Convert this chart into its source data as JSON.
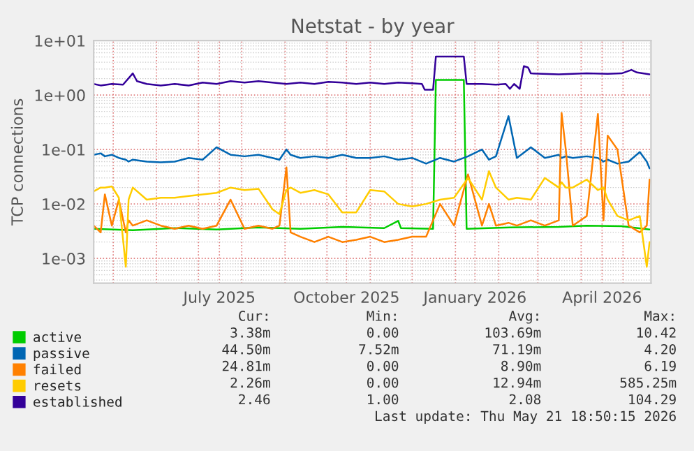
{
  "chart_data": {
    "type": "line",
    "title": "Netstat - by year",
    "ylabel": "TCP connections",
    "log": "y",
    "grid": true,
    "legend": "bottom",
    "line_style": "solid",
    "marker": "none",
    "xlim": [
      "2025-04-17",
      "2026-05-21"
    ],
    "xticks": [
      {
        "value": "2025-05-01",
        "label": null
      },
      {
        "value": "2025-06-01",
        "label": null
      },
      {
        "value": "2025-07-01",
        "label": null
      },
      {
        "value": "2025-07-16",
        "label": "July 2025"
      },
      {
        "value": "2025-08-01",
        "label": null
      },
      {
        "value": "2025-09-01",
        "label": null
      },
      {
        "value": "2025-10-01",
        "label": null
      },
      {
        "value": "2025-10-15",
        "label": "October 2025"
      },
      {
        "value": "2025-11-01",
        "label": null
      },
      {
        "value": "2025-12-01",
        "label": null
      },
      {
        "value": "2026-01-01",
        "label": null
      },
      {
        "value": "2026-01-15",
        "label": "January 2026"
      },
      {
        "value": "2026-02-01",
        "label": null
      },
      {
        "value": "2026-03-01",
        "label": null
      },
      {
        "value": "2026-04-01",
        "label": null
      },
      {
        "value": "2026-04-16",
        "label": "April 2026"
      },
      {
        "value": "2026-05-01",
        "label": null
      }
    ],
    "ylim": [
      0.00035,
      10
    ],
    "yticks": [
      {
        "value": 0.001,
        "label": "1e-03"
      },
      {
        "value": 0.01,
        "label": "1e-02"
      },
      {
        "value": 0.1,
        "label": "1e-01"
      },
      {
        "value": 1,
        "label": "1e+00"
      },
      {
        "value": 10,
        "label": "1e+01"
      }
    ],
    "x": [
      "2025-04-17",
      "2025-04-22",
      "2025-04-25",
      "2025-04-30",
      "2025-05-05",
      "2025-05-10",
      "2025-05-12",
      "2025-05-15",
      "2025-05-25",
      "2025-06-04",
      "2025-06-14",
      "2025-06-24",
      "2025-07-04",
      "2025-07-14",
      "2025-07-24",
      "2025-08-03",
      "2025-08-13",
      "2025-08-23",
      "2025-08-28",
      "2025-09-02",
      "2025-09-05",
      "2025-09-12",
      "2025-09-22",
      "2025-10-02",
      "2025-10-12",
      "2025-10-22",
      "2025-11-01",
      "2025-11-11",
      "2025-11-21",
      "2025-12-01",
      "2025-12-11",
      "2025-12-21",
      "2025-12-31",
      "2026-01-10",
      "2026-01-20",
      "2026-01-25",
      "2026-01-30",
      "2026-02-08",
      "2026-02-14",
      "2026-02-24",
      "2026-03-06",
      "2026-03-16",
      "2026-03-18",
      "2026-03-21",
      "2026-03-26",
      "2026-04-05",
      "2026-04-13",
      "2026-04-17",
      "2026-04-20",
      "2026-04-27",
      "2026-05-05",
      "2026-05-13",
      "2026-05-18",
      "2026-05-20"
    ],
    "series": [
      {
        "name": "active",
        "color": "#00cc00",
        "x": [
          "2025-04-17",
          "2025-05-15",
          "2025-06-14",
          "2025-07-14",
          "2025-08-13",
          "2025-09-12",
          "2025-10-12",
          "2025-11-11",
          "2025-11-21",
          "2025-11-23",
          "2025-12-16",
          "2025-12-18",
          "2026-01-07",
          "2026-01-09",
          "2026-02-09",
          "2026-03-16",
          "2026-04-05",
          "2026-04-30",
          "2026-05-20"
        ],
        "values": [
          0.0035,
          0.0033,
          0.0036,
          0.0034,
          0.0037,
          0.0035,
          0.0038,
          0.0036,
          0.0049,
          0.0036,
          0.0035,
          1.9,
          1.9,
          0.0035,
          0.0037,
          0.0038,
          0.004,
          0.0039,
          0.0034
        ]
      },
      {
        "name": "passive",
        "color": "#0066b3",
        "values": [
          0.08,
          0.085,
          0.075,
          0.08,
          0.07,
          0.065,
          0.06,
          0.065,
          0.06,
          0.058,
          0.06,
          0.07,
          0.065,
          0.11,
          0.08,
          0.075,
          0.08,
          0.07,
          0.065,
          0.1,
          0.08,
          0.07,
          0.075,
          0.07,
          0.08,
          0.07,
          0.07,
          0.075,
          0.065,
          0.07,
          0.055,
          0.07,
          0.06,
          0.075,
          0.1,
          0.065,
          0.075,
          0.41,
          0.07,
          0.11,
          0.07,
          0.08,
          0.07,
          0.075,
          0.07,
          0.075,
          0.07,
          0.06,
          0.065,
          0.055,
          0.06,
          0.09,
          0.06,
          0.045
        ]
      },
      {
        "name": "failed",
        "color": "#ff8000",
        "values": [
          0.004,
          0.003,
          0.015,
          0.004,
          0.012,
          0.003,
          0.005,
          0.004,
          0.005,
          0.004,
          0.0035,
          0.004,
          0.0035,
          0.004,
          0.012,
          0.0035,
          0.004,
          0.0035,
          0.004,
          0.047,
          0.003,
          0.0025,
          0.002,
          0.0025,
          0.002,
          0.0022,
          0.0025,
          0.002,
          0.0022,
          0.0025,
          0.0025,
          0.01,
          0.004,
          0.035,
          0.004,
          0.01,
          0.004,
          0.0045,
          0.004,
          0.005,
          0.004,
          0.005,
          0.47,
          0.1,
          0.004,
          0.006,
          0.45,
          0.005,
          0.18,
          0.1,
          0.004,
          0.003,
          0.004,
          0.028
        ]
      },
      {
        "name": "resets",
        "color": "#ffcc00",
        "values": [
          0.017,
          0.02,
          0.02,
          0.021,
          0.013,
          0.0007,
          0.012,
          0.02,
          0.012,
          0.013,
          0.013,
          0.014,
          0.015,
          0.016,
          0.02,
          0.018,
          0.019,
          0.008,
          0.0065,
          0.018,
          0.02,
          0.016,
          0.018,
          0.015,
          0.007,
          0.007,
          0.018,
          0.017,
          0.01,
          0.009,
          0.01,
          0.012,
          0.013,
          0.03,
          0.012,
          0.04,
          0.02,
          0.012,
          0.013,
          0.012,
          0.03,
          0.02,
          0.025,
          0.02,
          0.02,
          0.028,
          0.018,
          0.02,
          0.012,
          0.006,
          0.005,
          0.006,
          0.0007,
          0.002
        ]
      },
      {
        "name": "established",
        "color": "#330099",
        "x": [
          "2025-04-17",
          "2025-04-22",
          "2025-04-30",
          "2025-05-08",
          "2025-05-15",
          "2025-05-18",
          "2025-05-25",
          "2025-06-04",
          "2025-06-14",
          "2025-06-24",
          "2025-07-04",
          "2025-07-14",
          "2025-07-24",
          "2025-08-03",
          "2025-08-13",
          "2025-08-23",
          "2025-09-02",
          "2025-09-12",
          "2025-09-22",
          "2025-10-02",
          "2025-10-12",
          "2025-10-22",
          "2025-11-01",
          "2025-11-11",
          "2025-11-21",
          "2025-12-01",
          "2025-12-08",
          "2025-12-10",
          "2025-12-16",
          "2025-12-18",
          "2026-01-07",
          "2026-01-09",
          "2026-01-20",
          "2026-01-30",
          "2026-02-06",
          "2026-02-09",
          "2026-02-12",
          "2026-02-16",
          "2026-02-19",
          "2026-02-22",
          "2026-02-24",
          "2026-03-16",
          "2026-04-05",
          "2026-04-20",
          "2026-04-30",
          "2026-05-07",
          "2026-05-11",
          "2026-05-20"
        ],
        "values": [
          1.6,
          1.5,
          1.6,
          1.55,
          2.5,
          1.8,
          1.6,
          1.5,
          1.6,
          1.5,
          1.7,
          1.6,
          1.8,
          1.7,
          1.8,
          1.7,
          1.6,
          1.7,
          1.6,
          1.75,
          1.7,
          1.6,
          1.7,
          1.6,
          1.7,
          1.65,
          1.6,
          1.25,
          1.25,
          5.1,
          5.1,
          1.6,
          1.6,
          1.55,
          1.6,
          1.3,
          1.6,
          1.3,
          3.4,
          3.2,
          2.5,
          2.4,
          2.5,
          2.45,
          2.5,
          2.9,
          2.6,
          2.4
        ]
      }
    ],
    "annotations": [
      "Cur:",
      "Min:",
      "Avg:",
      "Max:",
      "3.38m",
      "0.00",
      "103.69m",
      "10.42",
      "44.50m",
      "7.52m",
      "71.19m",
      "4.20",
      "24.81m",
      "0.00",
      "8.90m",
      "6.19",
      "2.26m",
      "0.00",
      "12.94m",
      "585.25m",
      "2.46",
      "1.00",
      "2.08",
      "104.29",
      "Last update: Thu May 21 18:50:15 2026"
    ]
  }
}
